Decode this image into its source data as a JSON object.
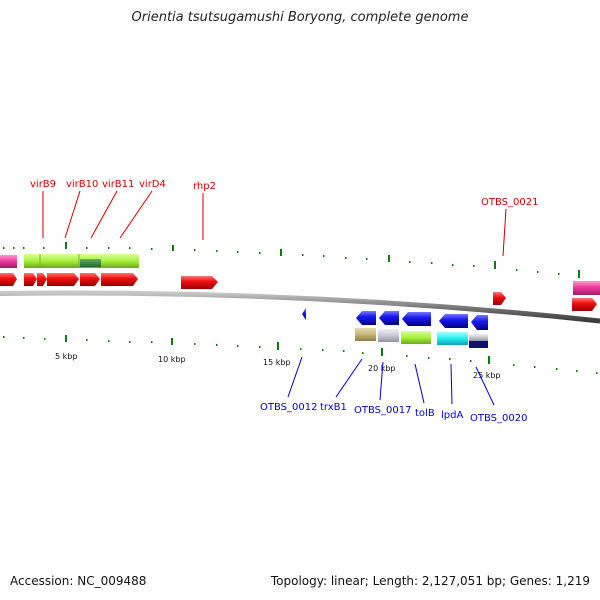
{
  "title": "Orientia tsutsugamushi Boryong, complete genome",
  "footer": {
    "accession": "Accession: NC_009488",
    "summary": "Topology: linear; Length: 2,127,051 bp; Genes: 1,219"
  },
  "scale_labels": [
    "5 kbp",
    "10 kbp",
    "15 kbp",
    "20 kbp",
    "25 kbp"
  ],
  "forward_gene_labels": [
    "virB9",
    "virB10",
    "virB11",
    "virD4",
    "rhp2",
    "OTBS_0021"
  ],
  "reverse_gene_labels": [
    "OTBS_0012",
    "trxB1",
    "OTBS_0017",
    "tolB",
    "lpdA",
    "OTBS_0020"
  ],
  "colors": {
    "forward_gene": "#ee1111",
    "reverse_gene": "#1a1aee",
    "function_green": "#a6f23a",
    "function_magenta": "#ee3399",
    "function_tan": "#c6b878",
    "function_grey": "#c8c8d4",
    "function_cyan": "#22eeee",
    "backbone": "#7a7a7a",
    "ticks": "#117711"
  }
}
